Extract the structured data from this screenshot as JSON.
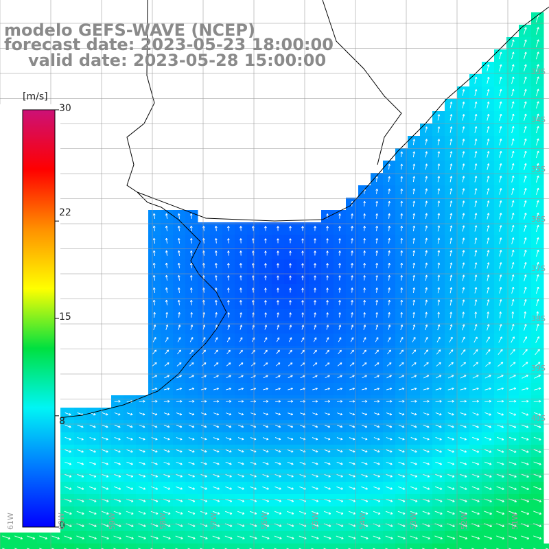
{
  "title": {
    "line1": "modelo GEFS-WAVE (NCEP)",
    "line2": "forecast date: 2023-05-23 18:00:00",
    "line3": "valid date: 2023-05-28 15:00:00"
  },
  "colorbar": {
    "unit": "[m/s]",
    "ticks": [
      "30",
      "22",
      "15",
      "8",
      "0"
    ],
    "tick_values": [
      30,
      22,
      15,
      8,
      0
    ],
    "min": 0,
    "max": 30,
    "colors": [
      "#0000ff",
      "#0078ff",
      "#00f5f5",
      "#00e040",
      "#ffff00",
      "#ff9000",
      "#ff0000",
      "#cc1177"
    ]
  },
  "map": {
    "land_color": "#ffffff",
    "coast_color": "#000000",
    "grid_color": "#999999",
    "arrow_color": "#ffffff",
    "lat_labels": [
      "33S",
      "34S",
      "35S",
      "36S",
      "37S",
      "38S",
      "39S",
      "40S"
    ],
    "lon_labels": [
      "61W",
      "60W",
      "59W",
      "58W",
      "57W",
      "56W",
      "55W",
      "54W",
      "53W",
      "52W",
      "51W"
    ]
  }
}
